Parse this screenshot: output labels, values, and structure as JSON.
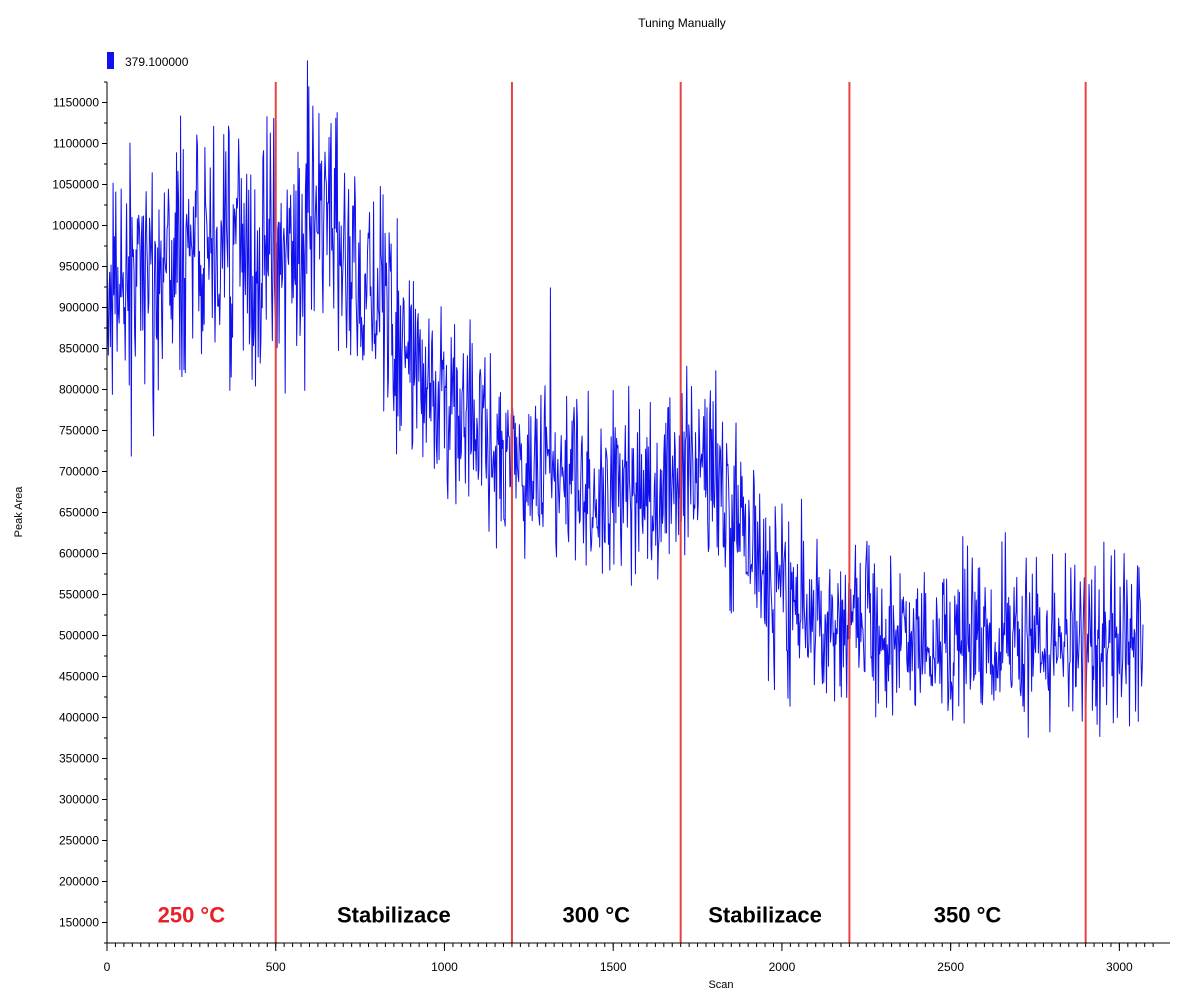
{
  "chart_data": {
    "type": "line",
    "title": "Tuning Manually",
    "xlabel": "Scan",
    "ylabel": "Peak Area",
    "xlim": [
      0,
      3150
    ],
    "ylim": [
      125000,
      1175000
    ],
    "x_ticks": [
      0,
      500,
      1000,
      1500,
      2000,
      2500,
      3000
    ],
    "x_tick_labels": [
      "0",
      "500",
      "1000",
      "1500",
      "2000",
      "2500",
      "3000"
    ],
    "y_ticks": [
      150000,
      200000,
      250000,
      300000,
      350000,
      400000,
      450000,
      500000,
      550000,
      600000,
      650000,
      700000,
      750000,
      800000,
      850000,
      900000,
      950000,
      1000000,
      1050000,
      1100000,
      1150000
    ],
    "y_tick_labels": [
      "150000",
      "200000",
      "250000",
      "300000",
      "350000",
      "400000",
      "450000",
      "500000",
      "550000",
      "600000",
      "650000",
      "700000",
      "750000",
      "800000",
      "850000",
      "900000",
      "950000",
      "1000000",
      "1050000",
      "1100000",
      "1150000"
    ],
    "series": [
      {
        "name": "379.100000",
        "color": "#1010ee",
        "x": [
          0,
          50,
          100,
          150,
          200,
          250,
          300,
          350,
          400,
          450,
          500,
          550,
          600,
          650,
          700,
          750,
          800,
          850,
          900,
          950,
          1000,
          1050,
          1100,
          1150,
          1200,
          1250,
          1300,
          1350,
          1400,
          1450,
          1500,
          1550,
          1600,
          1650,
          1700,
          1750,
          1800,
          1850,
          1900,
          1950,
          2000,
          2050,
          2100,
          2150,
          2200,
          2250,
          2300,
          2350,
          2400,
          2450,
          2500,
          2550,
          2600,
          2650,
          2700,
          2750,
          2800,
          2850,
          2900,
          2950,
          3000,
          3050
        ],
        "y": [
          910000,
          925000,
          940000,
          950000,
          955000,
          965000,
          975000,
          965000,
          960000,
          955000,
          960000,
          975000,
          990000,
          980000,
          970000,
          950000,
          915000,
          865000,
          835000,
          805000,
          790000,
          770000,
          755000,
          735000,
          725000,
          710000,
          700000,
          695000,
          690000,
          690000,
          682000,
          676000,
          680000,
          685000,
          688000,
          695000,
          690000,
          655000,
          615000,
          582000,
          555000,
          540000,
          530000,
          522000,
          515000,
          505000,
          498000,
          494000,
          492000,
          492000,
          490000,
          490000,
          492000,
          493000,
          494000,
          494000,
          493000,
          492000,
          491000,
          490000,
          490000,
          490000
        ],
        "noise_amplitude": [
          65000,
          70000,
          75000,
          80000,
          80000,
          80000,
          80000,
          80000,
          80000,
          80000,
          80000,
          80000,
          80000,
          80000,
          80000,
          75000,
          70000,
          65000,
          60000,
          55000,
          55000,
          55000,
          55000,
          55000,
          55000,
          55000,
          55000,
          55000,
          55000,
          55000,
          55000,
          55000,
          55000,
          55000,
          55000,
          55000,
          55000,
          55000,
          55000,
          55000,
          55000,
          50000,
          50000,
          50000,
          50000,
          50000,
          50000,
          50000,
          50000,
          50000,
          50000,
          50000,
          50000,
          50000,
          50000,
          50000,
          50000,
          50000,
          50000,
          50000,
          50000,
          50000
        ]
      }
    ],
    "vertical_lines": [
      {
        "x": 500,
        "color": "#e8423f"
      },
      {
        "x": 1200,
        "color": "#e8423f"
      },
      {
        "x": 1700,
        "color": "#e8423f"
      },
      {
        "x": 2200,
        "color": "#e8423f"
      },
      {
        "x": 2900,
        "color": "#e8423f"
      }
    ],
    "annotations": [
      {
        "text": "250 °C",
        "x": 250,
        "y": 160000,
        "color": "#e8202a"
      },
      {
        "text": "Stabilizace",
        "x": 850,
        "y": 160000,
        "color": "#000000"
      },
      {
        "text": "300 °C",
        "x": 1450,
        "y": 160000,
        "color": "#000000"
      },
      {
        "text": "Stabilizace",
        "x": 1950,
        "y": 160000,
        "color": "#000000"
      },
      {
        "text": "350 °C",
        "x": 2550,
        "y": 160000,
        "color": "#000000"
      }
    ],
    "legend": {
      "placement": "top-left",
      "entries": [
        {
          "label": "379.100000",
          "color": "#1010ee"
        }
      ]
    },
    "grid": false
  }
}
